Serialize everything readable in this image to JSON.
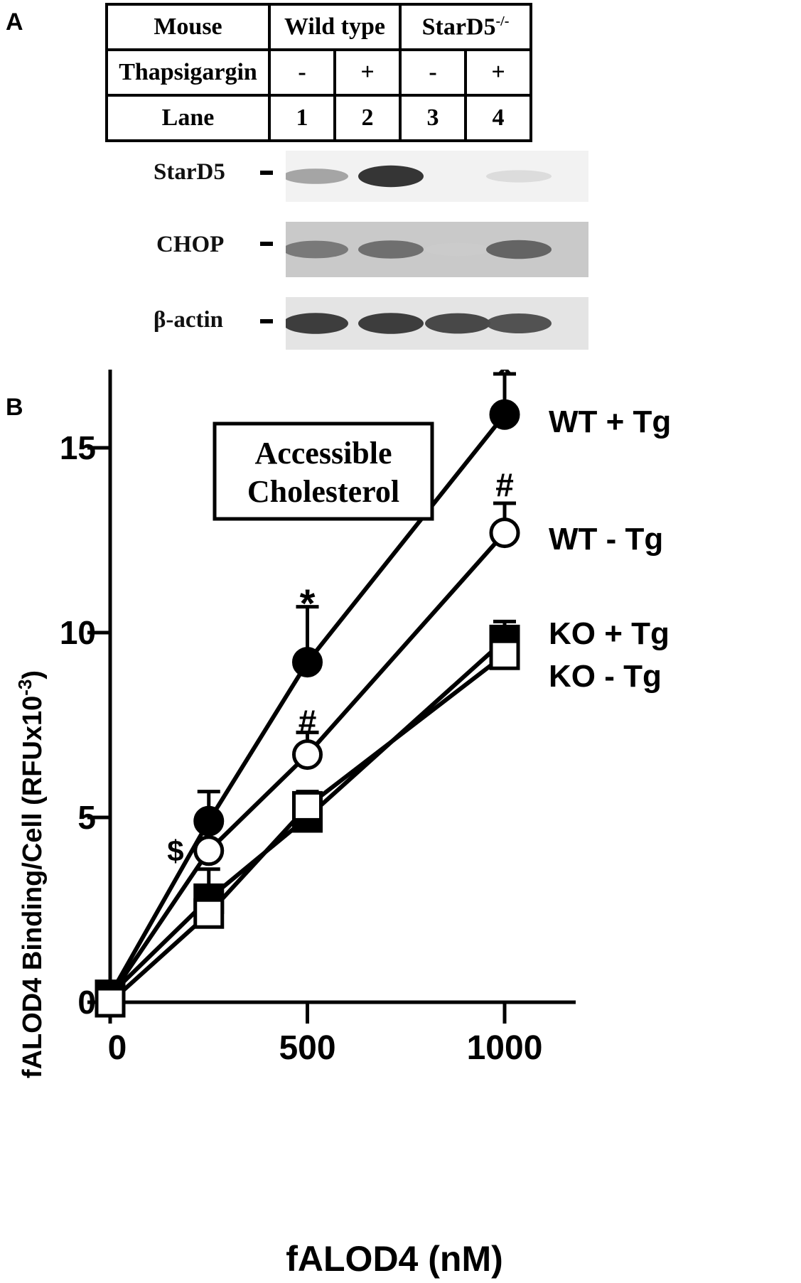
{
  "panel_a": {
    "letter": "A",
    "table": {
      "rows": [
        {
          "label": "Mouse",
          "cells": [
            "Wild type",
            "StarD5-/-"
          ]
        },
        {
          "label": "Thapsigargin",
          "cells": [
            "-",
            "+",
            "-",
            "+"
          ]
        },
        {
          "label": "Lane",
          "cells": [
            "1",
            "2",
            "3",
            "4"
          ]
        }
      ],
      "group1": "Wild type",
      "group2_base": "StarD5",
      "group2_sup": "-/-"
    },
    "blots": [
      {
        "label": "StarD5",
        "band_intensity": [
          0.35,
          0.9,
          0.0,
          0.08
        ]
      },
      {
        "label": "CHOP",
        "band_intensity": [
          0.55,
          0.6,
          0.15,
          0.65
        ]
      },
      {
        "label": "β-actin",
        "band_intensity": [
          0.85,
          0.85,
          0.8,
          0.75
        ]
      }
    ]
  },
  "panel_b": {
    "letter": "B",
    "inset_label_line1": "Accessible",
    "inset_label_line2": "Cholesterol"
  },
  "chart_data": {
    "type": "line",
    "title": "",
    "xlabel": "fALOD4 (nM)",
    "ylabel_base": "fALOD4 Binding/Cell (RFUx10",
    "ylabel_sup": "-3",
    "ylabel_end": ")",
    "xlim": [
      0,
      1100
    ],
    "ylim": [
      0,
      17.5
    ],
    "x_ticks": [
      0,
      500,
      1000
    ],
    "y_ticks": [
      0,
      5,
      10,
      15
    ],
    "x": [
      0,
      250,
      500,
      1000
    ],
    "series": [
      {
        "name": "WT + Tg",
        "marker": "filled-circle",
        "values": [
          0.2,
          4.9,
          9.2,
          15.9
        ],
        "err": [
          0,
          0.8,
          1.5,
          1.1
        ]
      },
      {
        "name": "WT - Tg",
        "marker": "open-circle",
        "values": [
          0.15,
          4.1,
          6.7,
          12.7
        ],
        "err": [
          0,
          0,
          0.6,
          0.8
        ]
      },
      {
        "name": "KO + Tg",
        "marker": "filled-square",
        "values": [
          0.2,
          2.8,
          5.0,
          9.8
        ],
        "err": [
          0,
          0.8,
          0.7,
          0.5
        ]
      },
      {
        "name": "KO - Tg",
        "marker": "open-square",
        "values": [
          0.0,
          2.4,
          5.3,
          9.4
        ],
        "err": [
          0,
          0,
          0,
          0
        ]
      }
    ],
    "annotations": [
      {
        "text": "*",
        "x": 1000,
        "y": 17.0,
        "size": 56
      },
      {
        "text": "#",
        "x": 1000,
        "y": 14.0,
        "size": 46
      },
      {
        "text": "*",
        "x": 500,
        "y": 10.8,
        "size": 56
      },
      {
        "text": "#",
        "x": 500,
        "y": 7.6,
        "size": 46
      },
      {
        "text": "$",
        "x": 180,
        "y": 4.1,
        "size": 42
      }
    ],
    "legend_placement": "right, inline beside line ends"
  }
}
